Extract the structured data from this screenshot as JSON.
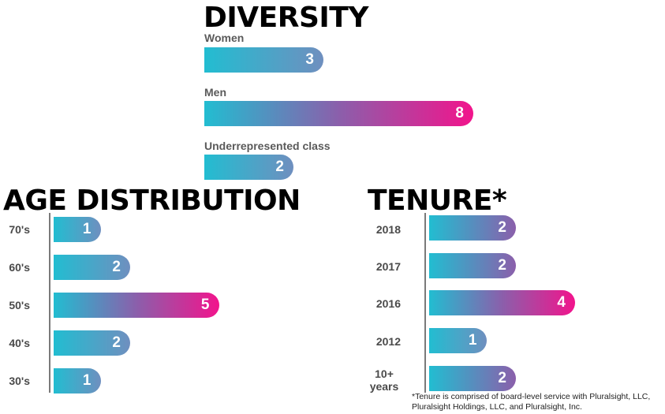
{
  "colors": {
    "bar_start": "#22bdd1",
    "bar_mid": "#8b5fab",
    "bar_end": "#f2148c"
  },
  "chart_data": [
    {
      "type": "bar",
      "orientation": "horizontal",
      "title": "DIVERSITY",
      "categories": [
        "Women",
        "Men",
        "Underrepresented class"
      ],
      "values": [
        3,
        8,
        2
      ],
      "xlim": [
        0,
        8
      ]
    },
    {
      "type": "bar",
      "orientation": "horizontal",
      "title": "AGE DISTRIBUTION",
      "categories": [
        "70's",
        "60's",
        "50's",
        "40's",
        "30's"
      ],
      "values": [
        1,
        2,
        5,
        2,
        1
      ],
      "xlim": [
        0,
        5
      ]
    },
    {
      "type": "bar",
      "orientation": "horizontal",
      "title": "TENURE*",
      "categories": [
        "2018",
        "2017",
        "2016",
        "2012",
        "10+ years"
      ],
      "values": [
        2,
        2,
        4,
        1,
        2
      ],
      "xlim": [
        0,
        4
      ],
      "footnote": "*Tenure is comprised of board-level service with Pluralsight, LLC, Pluralsight Holdings, LLC, and Pluralsight, Inc."
    }
  ]
}
